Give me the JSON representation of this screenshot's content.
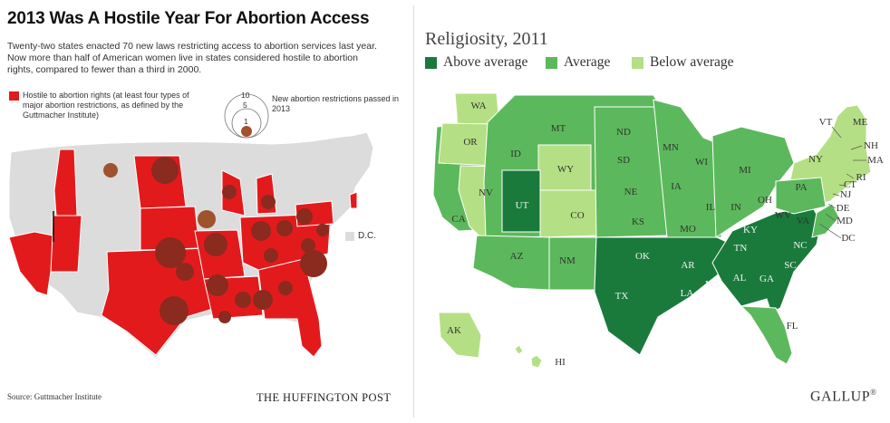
{
  "left_panel": {
    "title": "2013 Was A Hostile Year For Abortion Access",
    "subtitle": "Twenty-two states enacted 70 new laws restricting access to abortion services last year. Now more than half of American women live in states considered hostile to abortion rights, compared to fewer than a third in 2000.",
    "legend_hostile": "Hostile to abortion rights (at least four types of major abortion restrictions, as defined by the Guttmacher Institute)",
    "legend_restrictions": "New abortion restrictions passed in 2013",
    "circle_scale": [
      "10",
      "5",
      "1"
    ],
    "dc_label": "D.C.",
    "source": "Source: Guttmacher Institute",
    "brand": "THE HUFFINGTON POST",
    "colors": {
      "hostile": "#e31a1c",
      "other": "#dcdcdc",
      "bubble": "#8b2a1f",
      "bubble_on_grey": "#a0522d"
    }
  },
  "right_panel": {
    "title": "Religiosity, 2011",
    "legend": [
      {
        "label": "Above average",
        "color": "#1a7a3c"
      },
      {
        "label": "Average",
        "color": "#5cb85c"
      },
      {
        "label": "Below average",
        "color": "#b5df84"
      }
    ],
    "brand": "GALLUP",
    "brand_mark": "®",
    "state_labels": [
      "WA",
      "OR",
      "CA",
      "NV",
      "ID",
      "MT",
      "WY",
      "UT",
      "AZ",
      "CO",
      "NM",
      "ND",
      "SD",
      "NE",
      "KS",
      "OK",
      "TX",
      "MN",
      "IA",
      "MO",
      "AR",
      "LA",
      "WI",
      "IL",
      "MS",
      "MI",
      "IN",
      "KY",
      "TN",
      "AL",
      "OH",
      "GA",
      "FL",
      "PA",
      "WV",
      "VA",
      "NC",
      "SC",
      "NY",
      "VT",
      "ME",
      "NH",
      "MA",
      "RI",
      "CT",
      "NJ",
      "DE",
      "MD",
      "DC",
      "AK",
      "HI"
    ]
  }
}
